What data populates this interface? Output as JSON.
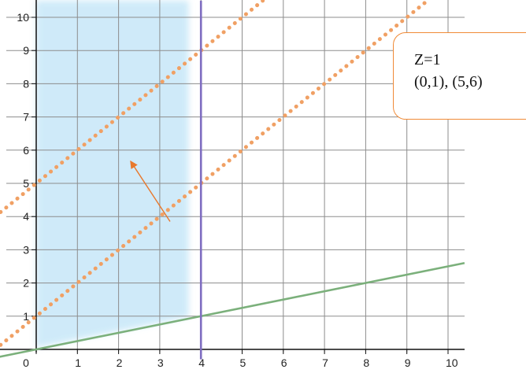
{
  "chart_data": {
    "type": "line",
    "xlim": [
      0,
      10.4
    ],
    "ylim": [
      0,
      10.5
    ],
    "x_ticks": [
      "0",
      "1",
      "2",
      "3",
      "4",
      "5",
      "6",
      "7",
      "8",
      "9",
      "10"
    ],
    "y_ticks": [
      "1",
      "2",
      "3",
      "4",
      "5",
      "6",
      "7",
      "8",
      "9",
      "10"
    ],
    "grid": true,
    "feasible_region": {
      "x": [
        0,
        3.7
      ],
      "y": [
        0,
        10.5
      ],
      "color": "#bfe4f7"
    },
    "series": [
      {
        "style": "dotted",
        "color": "#f0a064",
        "x": [
          -1,
          5.5
        ],
        "y": [
          4,
          10.5
        ]
      },
      {
        "style": "dotted",
        "color": "#f0a064",
        "x": [
          -1,
          9.5
        ],
        "y": [
          0,
          10.5
        ]
      },
      {
        "style": "solid",
        "color": "#7bb07b",
        "x": [
          -1,
          10.4
        ],
        "y": [
          -0.25,
          2.6
        ]
      },
      {
        "style": "solid",
        "color": "#7e6cc0",
        "x": [
          4,
          4
        ],
        "y": [
          -0.3,
          10.5
        ]
      }
    ],
    "arrow": {
      "from": [
        3.25,
        3.85
      ],
      "to": [
        2.3,
        5.65
      ],
      "color": "#e8782c"
    },
    "annotation_lines": [
      "Z=1",
      "(0,1), (5,6)"
    ]
  }
}
